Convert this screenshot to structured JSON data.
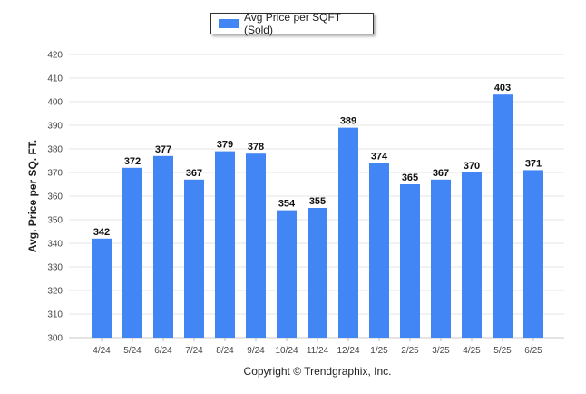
{
  "legend": {
    "label": "Avg Price per SQFT (Sold)"
  },
  "footer": {
    "copyright": "Copyright © Trendgraphix, Inc."
  },
  "colors": {
    "bar": "#4285f4",
    "grid": "#e6e6e6"
  },
  "chart_data": {
    "type": "bar",
    "categories": [
      "4/24",
      "5/24",
      "6/24",
      "7/24",
      "8/24",
      "9/24",
      "10/24",
      "11/24",
      "12/24",
      "1/25",
      "2/25",
      "3/25",
      "4/25",
      "5/25",
      "6/25"
    ],
    "series": [
      {
        "name": "Avg Price per SQFT (Sold)",
        "values": [
          342,
          372,
          377,
          367,
          379,
          378,
          354,
          355,
          389,
          374,
          365,
          367,
          370,
          403,
          371
        ]
      }
    ],
    "ylabel": "Avg. Price per SQ. FT.",
    "xlabel": "",
    "ylim": [
      300,
      420
    ],
    "yticks": [
      300,
      310,
      320,
      330,
      340,
      350,
      360,
      370,
      380,
      390,
      400,
      410,
      420
    ],
    "grid": true,
    "legend_position": "top-center"
  }
}
